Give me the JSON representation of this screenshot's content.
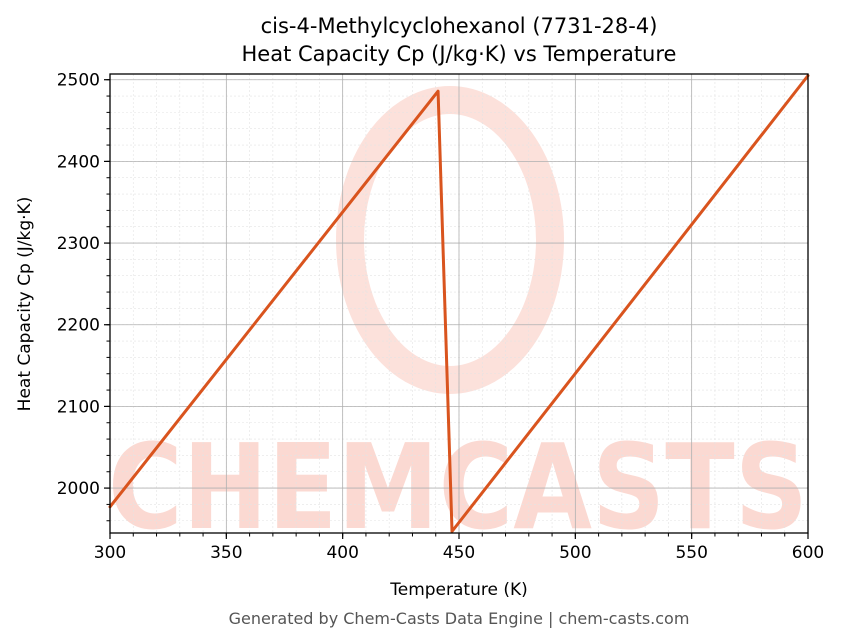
{
  "chart_data": {
    "type": "line",
    "title": "cis-4-Methylcyclohexanol (7731-28-4)",
    "subtitle": "Heat Capacity Cp (J/kg·K) vs Temperature",
    "xlabel": "Temperature (K)",
    "ylabel": "Heat Capacity Cp (J/kg·K)",
    "xlim": [
      300,
      600
    ],
    "ylim": [
      1945,
      2507
    ],
    "xticks": [
      300,
      350,
      400,
      450,
      500,
      550,
      600
    ],
    "yticks": [
      2000,
      2100,
      2200,
      2300,
      2400,
      2500
    ],
    "x_tick_labels": [
      "300",
      "350",
      "400",
      "450",
      "500",
      "550",
      "600"
    ],
    "y_tick_labels": [
      "2000",
      "2100",
      "2200",
      "2300",
      "2400",
      "2500"
    ],
    "grid": true,
    "series": [
      {
        "color": "#d9541e",
        "x": [
          300,
          441,
          447,
          600
        ],
        "y": [
          1977,
          2486,
          1947,
          2505
        ]
      }
    ]
  },
  "watermark": {
    "text": "CHEMCASTS",
    "color": "#fbd9d2"
  },
  "footer": "Generated by Chem-Casts Data Engine | chem-casts.com"
}
